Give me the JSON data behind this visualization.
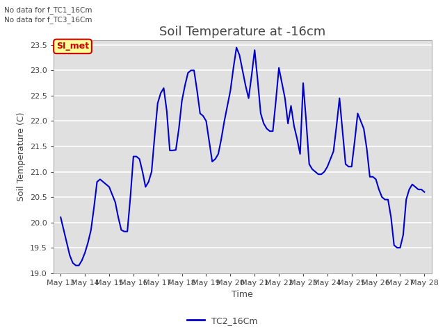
{
  "title": "Soil Temperature at -16cm",
  "xlabel": "Time",
  "ylabel": "Soil Temperature (C)",
  "ylim": [
    19.0,
    23.6
  ],
  "yticks": [
    19.0,
    19.5,
    20.0,
    20.5,
    21.0,
    21.5,
    22.0,
    22.5,
    23.0,
    23.5
  ],
  "line_color": "#0000cc",
  "line_width": 1.5,
  "background_color": "#ffffff",
  "plot_bg_color": "#e0e0e0",
  "grid_color": "#ffffff",
  "text_color": "#444444",
  "legend_label": "TC2_16Cm",
  "no_data_texts": [
    "No data for f_TC1_16Cm",
    "No data for f_TC3_16Cm"
  ],
  "si_met_label": "SI_met",
  "si_met_bg": "#ffff99",
  "si_met_border": "#cc0000",
  "xtick_labels": [
    "May 13",
    "May 14",
    "May 15",
    "May 16",
    "May 17",
    "May 18",
    "May 19",
    "May 20",
    "May 21",
    "May 22",
    "May 23",
    "May 24",
    "May 25",
    "May 26",
    "May 27",
    "May 28"
  ],
  "x_values": [
    13,
    13.125,
    13.25,
    13.375,
    13.5,
    13.625,
    13.75,
    13.875,
    14,
    14.125,
    14.25,
    14.375,
    14.5,
    14.625,
    14.75,
    14.875,
    15,
    15.125,
    15.25,
    15.375,
    15.5,
    15.625,
    15.75,
    15.875,
    16,
    16.125,
    16.25,
    16.375,
    16.5,
    16.625,
    16.75,
    16.875,
    17,
    17.125,
    17.25,
    17.375,
    17.5,
    17.625,
    17.75,
    17.875,
    18,
    18.125,
    18.25,
    18.375,
    18.5,
    18.625,
    18.75,
    18.875,
    19,
    19.125,
    19.25,
    19.375,
    19.5,
    19.625,
    19.75,
    19.875,
    20,
    20.125,
    20.25,
    20.375,
    20.5,
    20.625,
    20.75,
    20.875,
    21,
    21.125,
    21.25,
    21.375,
    21.5,
    21.625,
    21.75,
    21.875,
    22,
    22.125,
    22.25,
    22.375,
    22.5,
    22.625,
    22.75,
    22.875,
    23,
    23.125,
    23.25,
    23.375,
    23.5,
    23.625,
    23.75,
    23.875,
    24,
    24.125,
    24.25,
    24.375,
    24.5,
    24.625,
    24.75,
    24.875,
    25,
    25.125,
    25.25,
    25.375,
    25.5,
    25.625,
    25.75,
    25.875,
    26,
    26.125,
    26.25,
    26.375,
    26.5,
    26.625,
    26.75,
    26.875,
    27,
    27.125,
    27.25,
    27.375,
    27.5,
    27.625,
    27.75,
    27.875,
    28
  ],
  "y_values": [
    20.1,
    19.85,
    19.6,
    19.35,
    19.2,
    19.15,
    19.15,
    19.25,
    19.4,
    19.6,
    19.85,
    20.3,
    20.8,
    20.85,
    20.8,
    20.75,
    20.7,
    20.55,
    20.4,
    20.1,
    19.85,
    19.82,
    19.82,
    20.5,
    21.3,
    21.3,
    21.25,
    21.0,
    20.7,
    20.8,
    21.0,
    21.7,
    22.35,
    22.55,
    22.65,
    22.2,
    21.42,
    21.42,
    21.43,
    21.85,
    22.4,
    22.7,
    22.95,
    23.0,
    23.0,
    22.6,
    22.15,
    22.1,
    22.0,
    21.6,
    21.2,
    21.25,
    21.35,
    21.65,
    22.0,
    22.3,
    22.6,
    23.05,
    23.45,
    23.3,
    23.0,
    22.7,
    22.45,
    22.9,
    23.4,
    22.8,
    22.15,
    21.95,
    21.85,
    21.8,
    21.8,
    22.4,
    23.05,
    22.75,
    22.45,
    21.95,
    22.3,
    21.9,
    21.65,
    21.35,
    22.75,
    22.0,
    21.15,
    21.05,
    21.0,
    20.95,
    20.95,
    21.0,
    21.1,
    21.25,
    21.4,
    21.9,
    22.45,
    21.8,
    21.15,
    21.1,
    21.1,
    21.6,
    22.15,
    22.0,
    21.85,
    21.45,
    20.9,
    20.9,
    20.85,
    20.65,
    20.5,
    20.45,
    20.45,
    20.1,
    19.55,
    19.5,
    19.5,
    19.75,
    20.45,
    20.65,
    20.75,
    20.7,
    20.65,
    20.65,
    20.6
  ],
  "title_fontsize": 13,
  "axis_fontsize": 9,
  "tick_fontsize": 8
}
